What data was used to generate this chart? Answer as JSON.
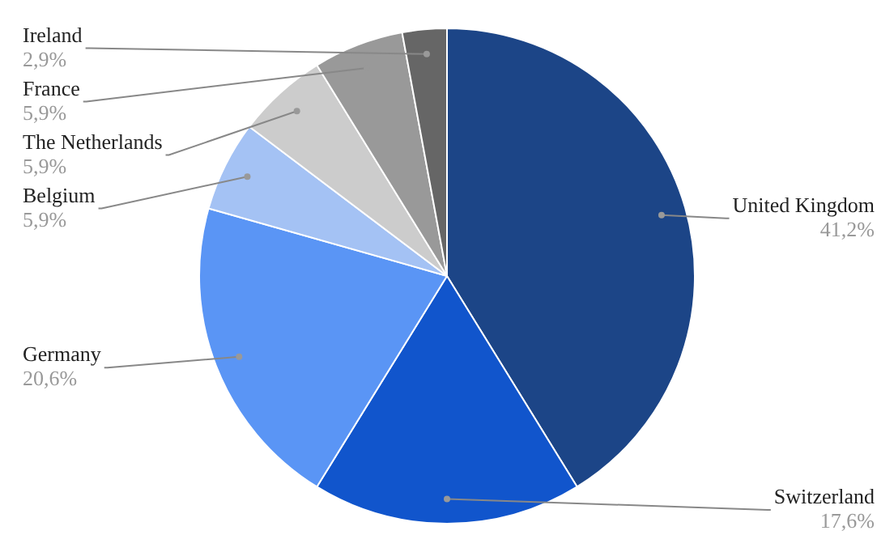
{
  "chart_data": {
    "type": "pie",
    "categories": [
      "United Kingdom",
      "Switzerland",
      "Germany",
      "Belgium",
      "The Netherlands",
      "France",
      "Ireland"
    ],
    "values": [
      41.2,
      17.6,
      20.6,
      5.9,
      5.9,
      5.9,
      2.9
    ],
    "colors": [
      "#1c4587",
      "#1155cc",
      "#5a95f5",
      "#a4c2f4",
      "#cccccc",
      "#999999",
      "#666666"
    ],
    "value_labels": [
      "41,2%",
      "17,6%",
      "20,6%",
      "5,9%",
      "5,9%",
      "5,9%",
      "2,9%"
    ]
  }
}
